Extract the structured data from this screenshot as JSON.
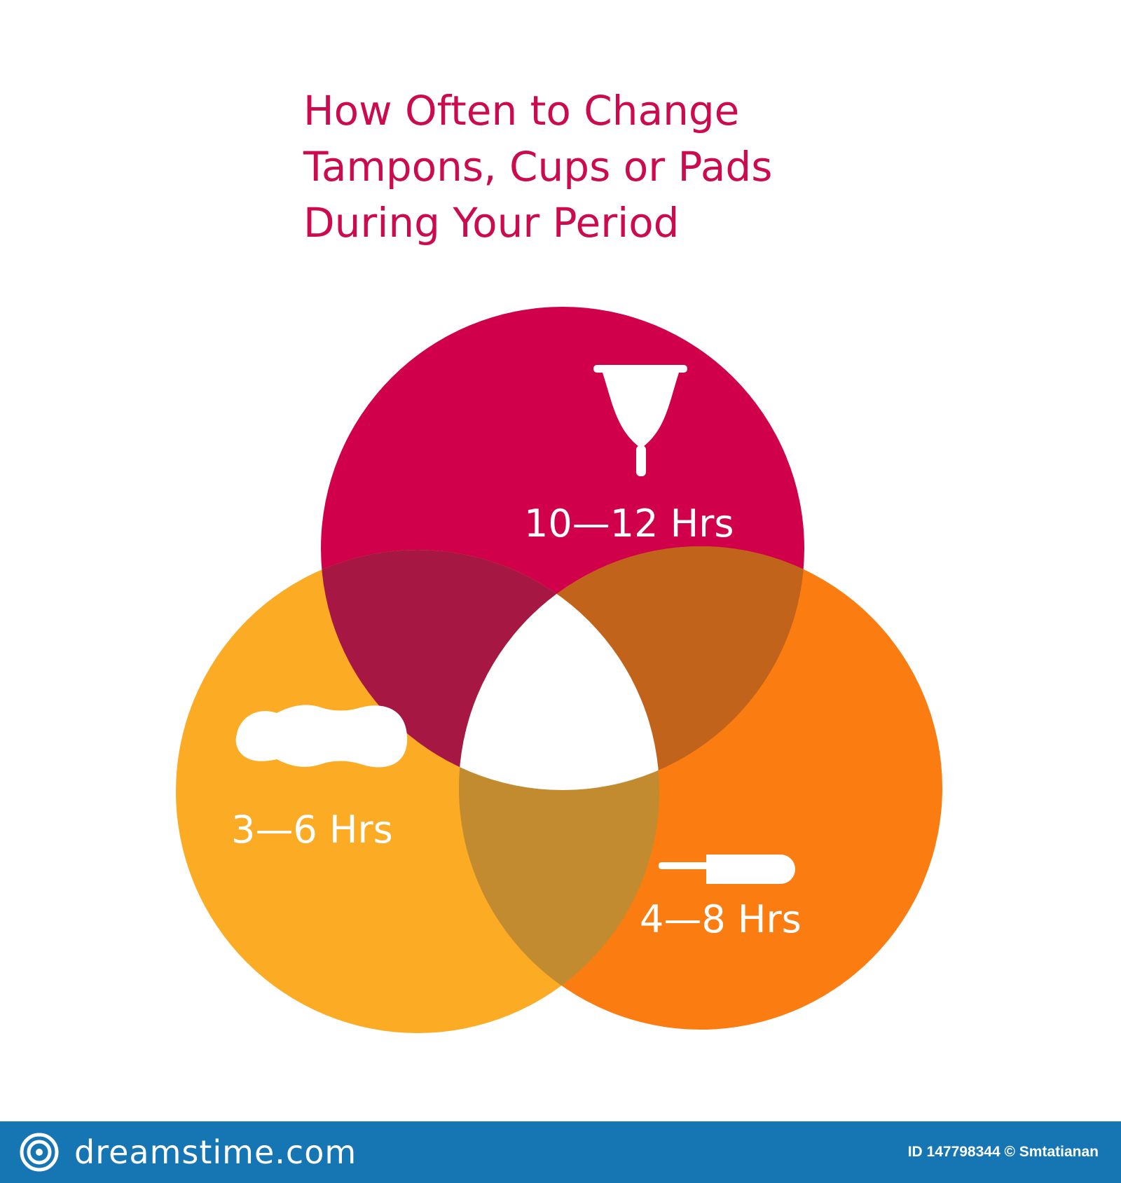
{
  "title": {
    "lines": [
      "How Often to Change",
      "Tampons, Cups or Pads",
      "During Your Period"
    ]
  },
  "circles": [
    {
      "label": "10—12 Hrs",
      "icon": "menstrual-cup-icon",
      "color": "#d1004b"
    },
    {
      "label": "3—6 Hrs",
      "icon": "sanitary-pad-icon",
      "color": "#fcab24"
    },
    {
      "label": "4—8 Hrs",
      "icon": "tampon-icon",
      "color": "#fb7d12"
    }
  ],
  "overlap_colors": {
    "red_yellow": "#a61843",
    "red_orange": "#c2631c",
    "yellow_orange": "#c38b2f"
  },
  "footer": {
    "brand": "dreamstime.com",
    "brand_icon": "dreamstime-spiral-icon",
    "credit": "ID 147798344 © Smtatianan",
    "color": "#1676b4"
  }
}
